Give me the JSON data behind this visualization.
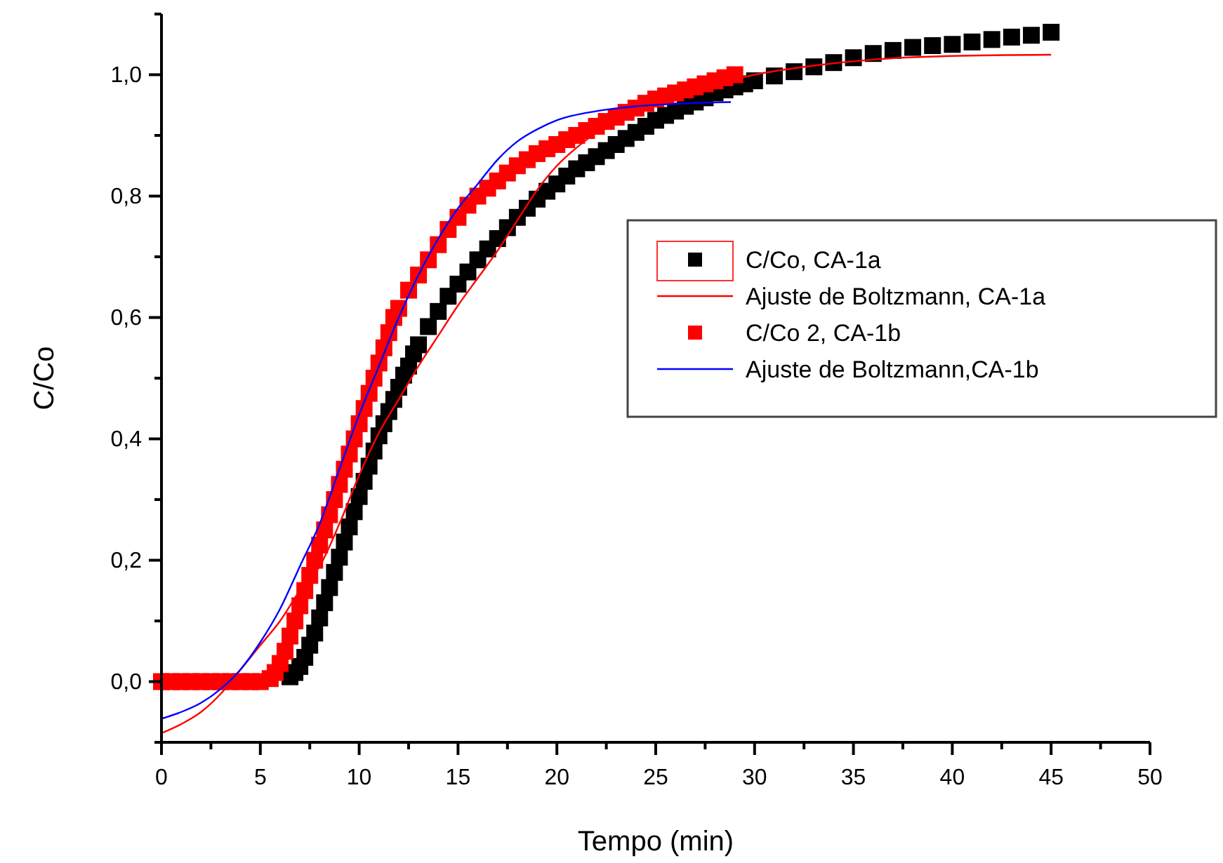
{
  "chart_data": {
    "type": "scatter",
    "xlabel": "Tempo (min)",
    "ylabel": "C/Co",
    "xlim": [
      0,
      50
    ],
    "ylim": [
      -0.1,
      1.1
    ],
    "xticks": [
      0,
      {
        "value": 2.5,
        "label": null
      },
      5,
      {
        "value": 7.5,
        "label": null
      },
      10,
      {
        "value": 12.5,
        "label": null
      },
      15,
      {
        "value": 17.5,
        "label": null
      },
      20,
      {
        "value": 22.5,
        "label": null
      },
      25,
      {
        "value": 27.5,
        "label": null
      },
      30,
      {
        "value": 32.5,
        "label": null
      },
      35,
      {
        "value": 37.5,
        "label": null
      },
      40,
      {
        "value": 42.5,
        "label": null
      },
      45,
      {
        "value": 47.5,
        "label": null
      },
      50
    ],
    "yticks": [
      {
        "value": -0.1,
        "label": null
      },
      {
        "value": 0,
        "label": "0,0"
      },
      {
        "value": 0.1,
        "label": null
      },
      {
        "value": 0.2,
        "label": "0,2"
      },
      {
        "value": 0.3,
        "label": null
      },
      {
        "value": 0.4,
        "label": "0,4"
      },
      {
        "value": 0.5,
        "label": null
      },
      {
        "value": 0.6,
        "label": "0,6"
      },
      {
        "value": 0.7,
        "label": null
      },
      {
        "value": 0.8,
        "label": "0,8"
      },
      {
        "value": 0.9,
        "label": null
      },
      {
        "value": 1.0,
        "label": "1,0"
      },
      {
        "value": 1.1,
        "label": null
      }
    ],
    "grid": false,
    "legend": "right",
    "series": [
      {
        "name": "C/Co, CA-1a",
        "marker": "square",
        "color": "#000000",
        "x": [
          6.5,
          6.75,
          7,
          7.25,
          7.5,
          7.75,
          8,
          8.25,
          8.5,
          8.75,
          9,
          9.25,
          9.5,
          9.75,
          10,
          10.25,
          10.5,
          10.75,
          11,
          11.25,
          11.5,
          11.75,
          12,
          12.25,
          12.5,
          12.75,
          13,
          13.5,
          14,
          14.5,
          15,
          15.5,
          16,
          16.5,
          17,
          17.5,
          18,
          18.5,
          19,
          19.5,
          20,
          20.5,
          21,
          21.5,
          22,
          22.5,
          23,
          23.5,
          24,
          24.5,
          25,
          25.5,
          26,
          26.5,
          27,
          27.5,
          28,
          28.5,
          29,
          29.5,
          30,
          31,
          32,
          33,
          34,
          35,
          36,
          37,
          38,
          39,
          40,
          41,
          42,
          43,
          44,
          45
        ],
        "values": [
          0.008,
          0.015,
          0.025,
          0.04,
          0.06,
          0.08,
          0.105,
          0.13,
          0.155,
          0.18,
          0.205,
          0.23,
          0.255,
          0.28,
          0.305,
          0.33,
          0.355,
          0.38,
          0.405,
          0.425,
          0.445,
          0.465,
          0.485,
          0.505,
          0.52,
          0.54,
          0.555,
          0.585,
          0.61,
          0.635,
          0.655,
          0.675,
          0.695,
          0.713,
          0.73,
          0.748,
          0.765,
          0.78,
          0.795,
          0.808,
          0.82,
          0.833,
          0.845,
          0.855,
          0.865,
          0.875,
          0.885,
          0.895,
          0.905,
          0.915,
          0.925,
          0.933,
          0.94,
          0.948,
          0.955,
          0.962,
          0.97,
          0.975,
          0.98,
          0.985,
          0.99,
          0.998,
          1.005,
          1.013,
          1.02,
          1.028,
          1.035,
          1.04,
          1.045,
          1.048,
          1.05,
          1.054,
          1.058,
          1.062,
          1.065,
          1.07
        ]
      },
      {
        "name": "Ajuste de Boltzmann, CA-1a",
        "type": "line",
        "marker": "none",
        "color": "#ff0000",
        "x": [
          0,
          1,
          2,
          3,
          4,
          5,
          6,
          7,
          8,
          9,
          10,
          11,
          12,
          13,
          14,
          15,
          16,
          17,
          18,
          19,
          20,
          21,
          22,
          23,
          25,
          27,
          30,
          33,
          36,
          40,
          45
        ],
        "values": [
          -0.085,
          -0.07,
          -0.05,
          -0.02,
          0.02,
          0.06,
          0.1,
          0.15,
          0.19,
          0.26,
          0.34,
          0.41,
          0.465,
          0.52,
          0.57,
          0.62,
          0.665,
          0.71,
          0.76,
          0.81,
          0.85,
          0.88,
          0.905,
          0.925,
          0.955,
          0.975,
          1.0,
          1.015,
          1.025,
          1.031,
          1.033
        ]
      },
      {
        "name": "C/Co 2, CA-1b",
        "marker": "square",
        "color": "#ff0000",
        "x": [
          0,
          0.5,
          1,
          1.5,
          2,
          2.5,
          3,
          3.5,
          4,
          4.5,
          5,
          5.5,
          5.75,
          6,
          6.25,
          6.5,
          6.75,
          7,
          7.25,
          7.5,
          7.75,
          8,
          8.25,
          8.5,
          8.75,
          9,
          9.25,
          9.5,
          9.75,
          10,
          10.25,
          10.5,
          10.75,
          11,
          11.25,
          11.5,
          11.75,
          12,
          12.5,
          13,
          13.5,
          14,
          14.5,
          15,
          15.5,
          16,
          16.5,
          17,
          17.5,
          18,
          18.5,
          19,
          19.5,
          20,
          20.5,
          21,
          21.5,
          22,
          22.5,
          23,
          23.5,
          24,
          24.5,
          25,
          25.5,
          26,
          26.5,
          27,
          27.5,
          28,
          28.5,
          29
        ],
        "values": [
          0,
          0,
          0,
          0,
          0,
          0,
          0,
          0,
          0,
          0,
          0,
          0.005,
          0.015,
          0.03,
          0.05,
          0.075,
          0.1,
          0.125,
          0.15,
          0.175,
          0.2,
          0.225,
          0.25,
          0.275,
          0.3,
          0.325,
          0.35,
          0.375,
          0.4,
          0.425,
          0.45,
          0.475,
          0.5,
          0.525,
          0.55,
          0.575,
          0.6,
          0.615,
          0.645,
          0.67,
          0.695,
          0.72,
          0.745,
          0.765,
          0.785,
          0.8,
          0.813,
          0.825,
          0.838,
          0.85,
          0.86,
          0.87,
          0.878,
          0.885,
          0.893,
          0.9,
          0.908,
          0.915,
          0.923,
          0.93,
          0.938,
          0.945,
          0.953,
          0.96,
          0.965,
          0.97,
          0.975,
          0.98,
          0.985,
          0.99,
          0.995,
          1.0
        ]
      },
      {
        "name": "Ajuste de Boltzmann,CA-1b",
        "type": "line",
        "marker": "none",
        "color": "#0000ff",
        "x": [
          0,
          1,
          2,
          3,
          4,
          5,
          6,
          7,
          8,
          9,
          10,
          11,
          12,
          13,
          14,
          15,
          16,
          17,
          18,
          19,
          20,
          22,
          24,
          26,
          28.8
        ],
        "values": [
          -0.061,
          -0.05,
          -0.035,
          -0.012,
          0.02,
          0.065,
          0.12,
          0.19,
          0.26,
          0.35,
          0.44,
          0.52,
          0.6,
          0.67,
          0.73,
          0.78,
          0.82,
          0.86,
          0.89,
          0.91,
          0.925,
          0.94,
          0.948,
          0.952,
          0.955
        ]
      }
    ]
  }
}
